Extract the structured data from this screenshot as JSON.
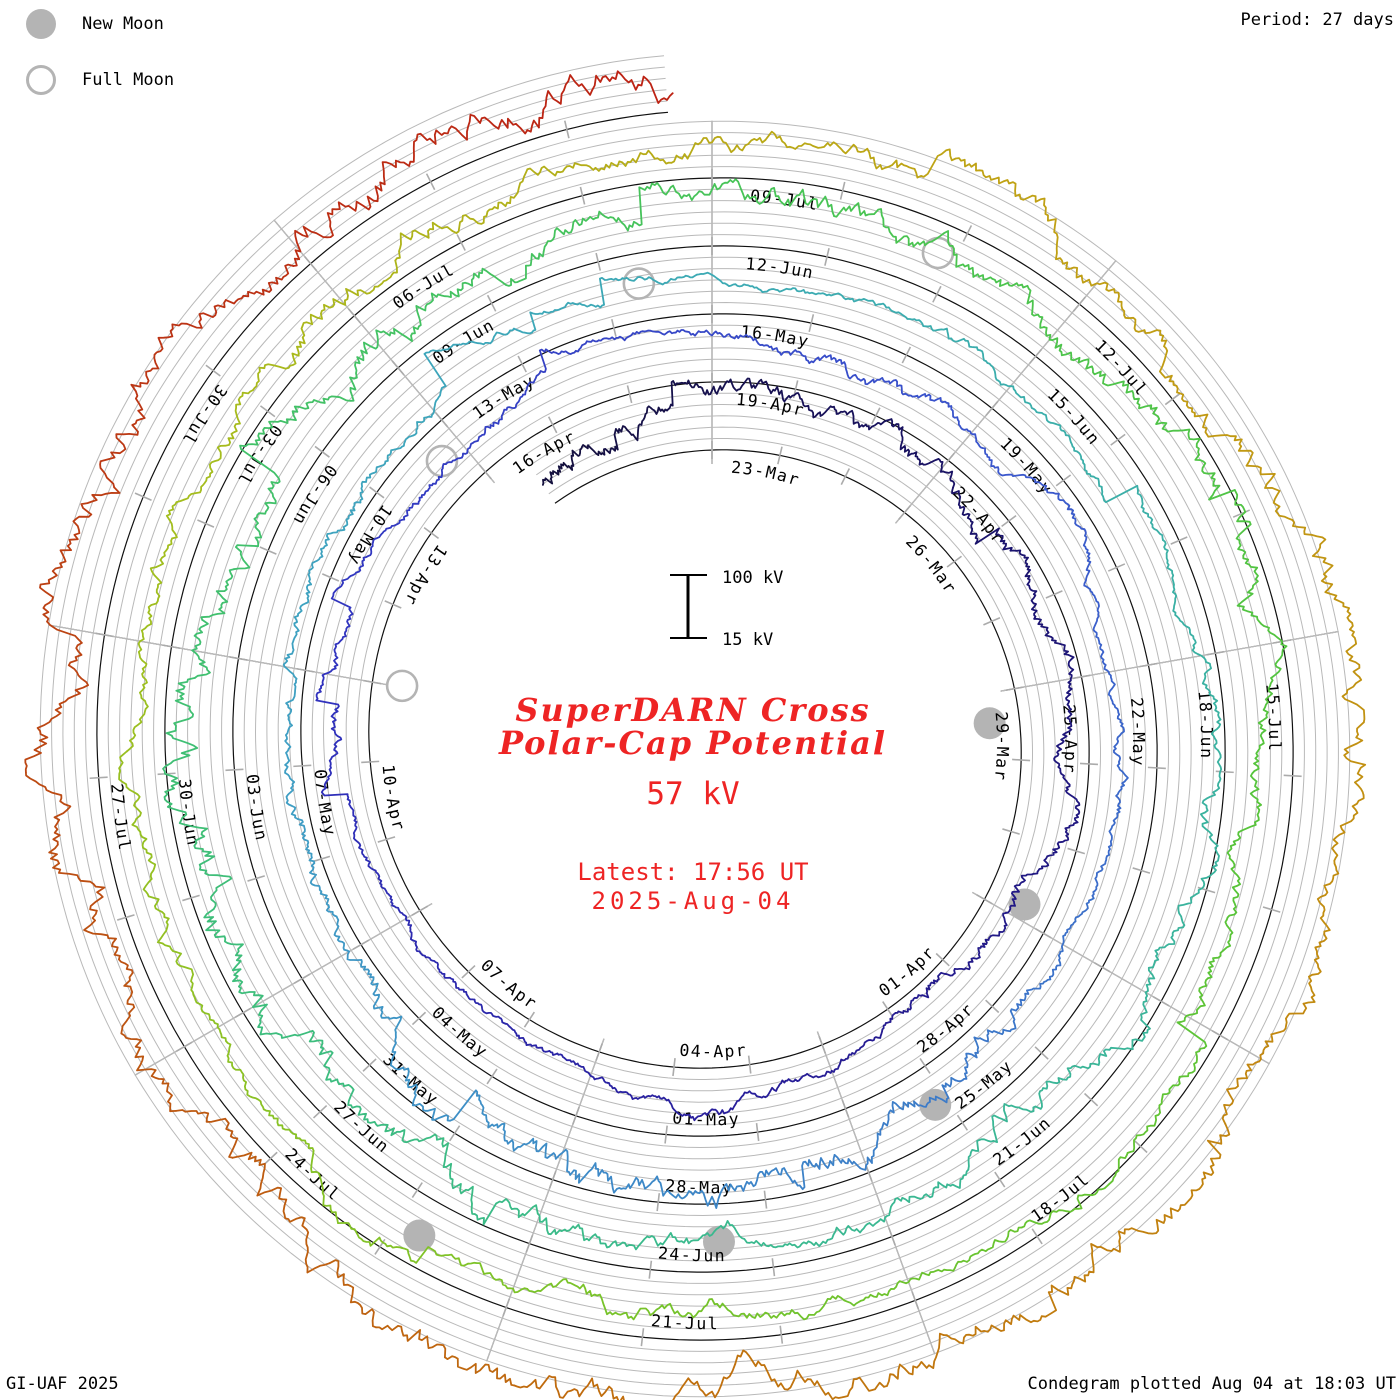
{
  "legend": {
    "new_moon_label": "New Moon",
    "full_moon_label": "Full Moon",
    "moon_color": "#b4b4b4"
  },
  "period_label": "Period: 27 days",
  "footer": {
    "left": "GI-UAF 2025",
    "right": "Condegram plotted Aug 04 at 18:03 UT"
  },
  "center": {
    "title_line1": "SuperDARN Cross",
    "title_line2": "Polar-Cap Potential",
    "current_value": "57 kV",
    "latest_line1": "Latest: 17:56 UT",
    "latest_line2": "2025-Aug-04",
    "text_color": "#ee2424"
  },
  "scale": {
    "top_label": "100 kV",
    "bottom_label": "15 kV"
  },
  "chart_data": {
    "type": "line",
    "subtype": "condegram-spiral",
    "title": "SuperDARN Cross Polar-Cap Potential",
    "value_unit": "kV",
    "value_scale_range_kv": [
      15,
      100
    ],
    "latest_value_kv": 57,
    "latest_time": "17:56 UT 2025-Aug-04",
    "period_days": 27,
    "start_day_offset": -2.5,
    "end_day_offset": 134.75,
    "epoch_label": "23-Mar-2025",
    "values_approximate": true,
    "label_step_days": 3,
    "date_labels": [
      {
        "text": "23-Mar",
        "day": 0
      },
      {
        "text": "26-Mar",
        "day": 3
      },
      {
        "text": "29-Mar",
        "day": 6
      },
      {
        "text": "01-Apr",
        "day": 9
      },
      {
        "text": "04-Apr",
        "day": 12
      },
      {
        "text": "07-Apr",
        "day": 15
      },
      {
        "text": "10-Apr",
        "day": 18
      },
      {
        "text": "13-Apr",
        "day": 21
      },
      {
        "text": "16-Apr",
        "day": 24
      },
      {
        "text": "19-Apr",
        "day": 27
      },
      {
        "text": "22-Apr",
        "day": 30
      },
      {
        "text": "25-Apr",
        "day": 33
      },
      {
        "text": "28-Apr",
        "day": 36
      },
      {
        "text": "01-May",
        "day": 39
      },
      {
        "text": "04-May",
        "day": 42
      },
      {
        "text": "07-May",
        "day": 45
      },
      {
        "text": "10-May",
        "day": 48
      },
      {
        "text": "13-May",
        "day": 51
      },
      {
        "text": "16-May",
        "day": 54
      },
      {
        "text": "19-May",
        "day": 57
      },
      {
        "text": "22-May",
        "day": 60
      },
      {
        "text": "25-May",
        "day": 63
      },
      {
        "text": "28-May",
        "day": 66
      },
      {
        "text": "31-May",
        "day": 69
      },
      {
        "text": "03-Jun",
        "day": 72
      },
      {
        "text": "06-Jun",
        "day": 75
      },
      {
        "text": "09-Jun",
        "day": 78
      },
      {
        "text": "12-Jun",
        "day": 81
      },
      {
        "text": "15-Jun",
        "day": 84
      },
      {
        "text": "18-Jun",
        "day": 87
      },
      {
        "text": "21-Jun",
        "day": 90
      },
      {
        "text": "24-Jun",
        "day": 93
      },
      {
        "text": "27-Jun",
        "day": 96
      },
      {
        "text": "30-Jun",
        "day": 99
      },
      {
        "text": "03-Jul",
        "day": 102
      },
      {
        "text": "06-Jul",
        "day": 105
      },
      {
        "text": "09-Jul",
        "day": 108
      },
      {
        "text": "12-Jul",
        "day": 111
      },
      {
        "text": "15-Jul",
        "day": 114
      },
      {
        "text": "18-Jul",
        "day": 117
      },
      {
        "text": "21-Jul",
        "day": 120
      },
      {
        "text": "24-Jul",
        "day": 123
      },
      {
        "text": "27-Jul",
        "day": 126
      },
      {
        "text": "30-Jul",
        "day": 129
      }
    ],
    "new_moons": [
      {
        "date": "29-Mar",
        "day": 6.46
      },
      {
        "date": "27-Apr",
        "day": 35.81
      },
      {
        "date": "27-May",
        "day": 65.13
      },
      {
        "date": "25-Jun",
        "day": 94.44
      },
      {
        "date": "24-Jul",
        "day": 123.8
      }
    ],
    "full_moons": [
      {
        "date": "13-Apr",
        "day": 21.02
      },
      {
        "date": "12-May",
        "day": 50.71
      },
      {
        "date": "11-Jun",
        "day": 80.32
      },
      {
        "date": "10-Jul",
        "day": 109.86
      }
    ],
    "trace_color_stops": [
      {
        "day": -2.5,
        "color": "#14103c"
      },
      {
        "day": 5,
        "color": "#1b1372"
      },
      {
        "day": 13,
        "color": "#281e9a"
      },
      {
        "day": 21,
        "color": "#3032be"
      },
      {
        "day": 30,
        "color": "#3a54cc"
      },
      {
        "day": 39,
        "color": "#3d80c8"
      },
      {
        "day": 47,
        "color": "#3f9fc4"
      },
      {
        "day": 54,
        "color": "#3caab4"
      },
      {
        "day": 61,
        "color": "#3ab2a0"
      },
      {
        "day": 68,
        "color": "#3aba8c"
      },
      {
        "day": 75,
        "color": "#40c070"
      },
      {
        "day": 82,
        "color": "#48c454"
      },
      {
        "day": 89,
        "color": "#58c438"
      },
      {
        "day": 96,
        "color": "#7cc328"
      },
      {
        "day": 103,
        "color": "#a4be1e"
      },
      {
        "day": 110,
        "color": "#c0a214"
      },
      {
        "day": 116,
        "color": "#c28c10"
      },
      {
        "day": 122,
        "color": "#c06e0e"
      },
      {
        "day": 127,
        "color": "#bc5012"
      },
      {
        "day": 131,
        "color": "#bc3414"
      },
      {
        "day": 137.5,
        "color": "#bd1414"
      }
    ],
    "grid_color": "#b9b9b9",
    "spiral_color": "#111111",
    "legend_position": "top-left",
    "grid_on": true
  }
}
